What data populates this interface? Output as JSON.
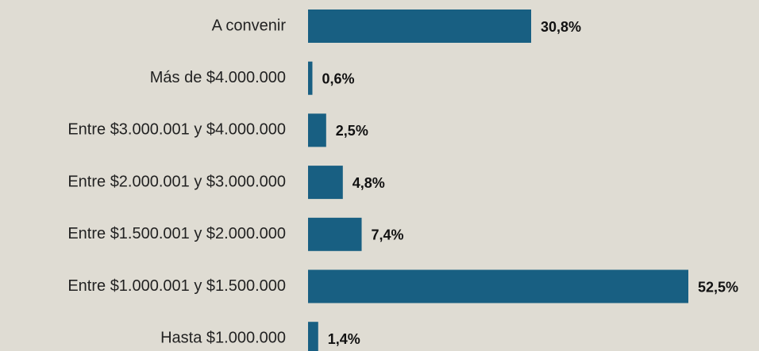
{
  "chart_data": {
    "type": "bar",
    "orientation": "horizontal",
    "categories": [
      "A convenir",
      "Más de $4.000.000",
      "Entre $3.000.001 y $4.000.000",
      "Entre $2.000.001 y $3.000.000",
      "Entre $1.500.001 y $2.000.000",
      "Entre $1.000.001 y $1.500.000",
      "Hasta $1.000.000"
    ],
    "values": [
      30.8,
      0.6,
      2.5,
      4.8,
      7.4,
      52.5,
      1.4
    ],
    "value_labels": [
      "30,8%",
      "0,6%",
      "2,5%",
      "4,8%",
      "7,4%",
      "52,5%",
      "1,4%"
    ],
    "color": "#185f82"
  }
}
